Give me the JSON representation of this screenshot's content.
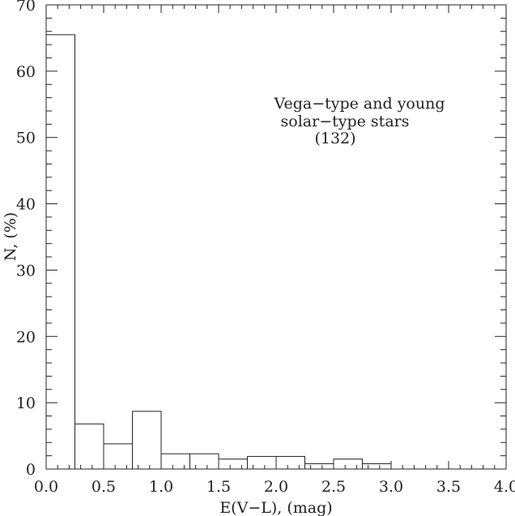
{
  "chart_data": {
    "type": "bar",
    "xlabel": "E(V−L), (mag)",
    "ylabel": "N, (%)",
    "xlim": [
      0.0,
      4.0
    ],
    "ylim": [
      0,
      70
    ],
    "xticks": [
      "0.0",
      "0.5",
      "1.0",
      "1.5",
      "2.0",
      "2.5",
      "3.0",
      "3.5",
      "4.0"
    ],
    "yticks": [
      "0",
      "10",
      "20",
      "30",
      "40",
      "50",
      "60",
      "70"
    ],
    "annotation": [
      "Vega−type and young",
      "solar−type stars",
      "(132)"
    ],
    "bin_edges": [
      0.0,
      0.25,
      0.5,
      0.75,
      1.0,
      1.25,
      1.5,
      1.75,
      2.0,
      2.25,
      2.5,
      2.75,
      3.0
    ],
    "values": [
      65.5,
      6.8,
      3.8,
      8.7,
      2.3,
      2.3,
      1.5,
      1.9,
      1.9,
      0.8,
      1.5,
      0.8
    ],
    "grid": false
  }
}
